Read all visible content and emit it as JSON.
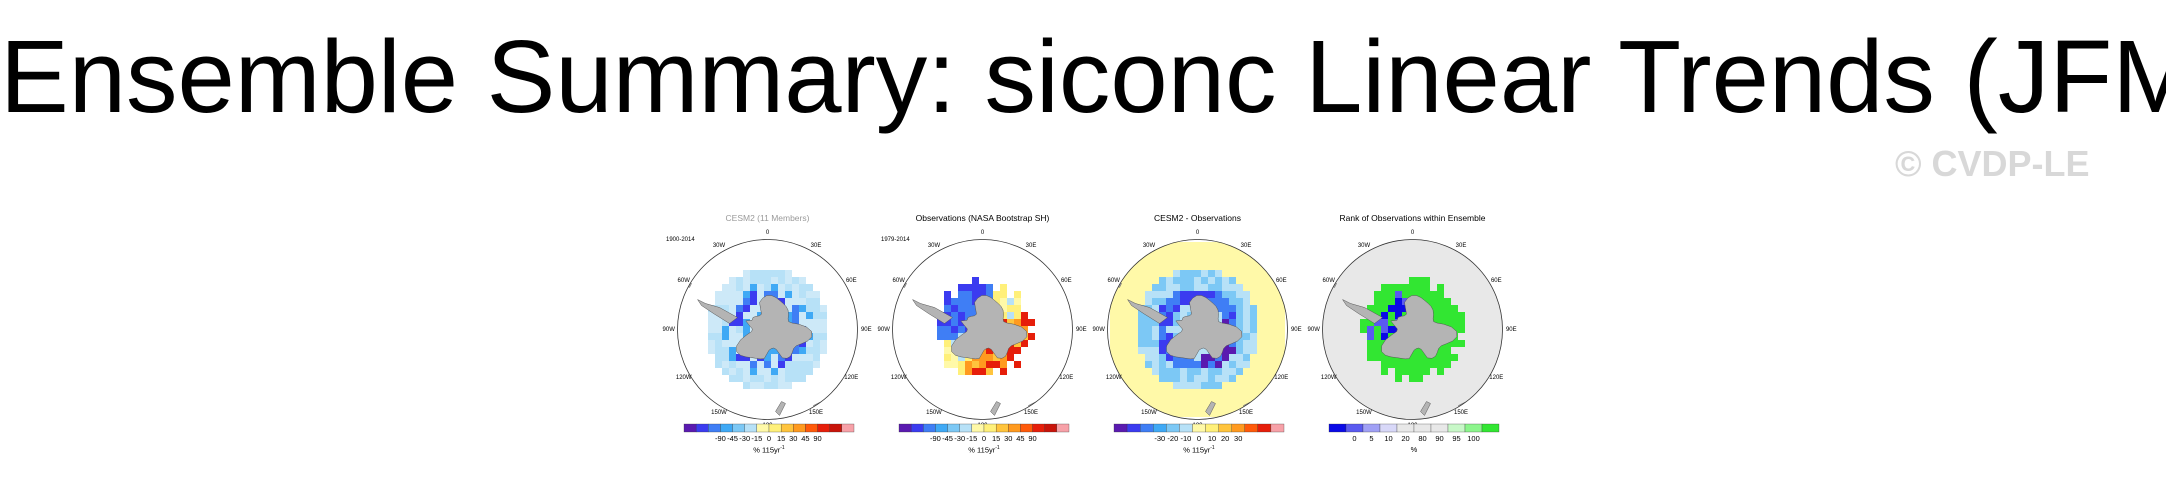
{
  "title": "Ensemble Summary: siconc Linear Trends (JFM)",
  "watermark": "© CVDP-LE",
  "longitude_labels": [
    "0",
    "30E",
    "60E",
    "90E",
    "120E",
    "150E",
    "180",
    "150W",
    "120W",
    "90W",
    "60W",
    "30W"
  ],
  "panels": [
    {
      "title": "CESM2 (11 Members)",
      "title_color": "#9a9a9a",
      "period": "1900-2014",
      "field": "cesm2",
      "colorbar": {
        "ticks": [
          "-90",
          "-45",
          "-30",
          "-15",
          "0",
          "15",
          "30",
          "45",
          "90"
        ],
        "unit": "% 115yr",
        "unit_sup": "-1",
        "colors": [
          "#5a1ab0",
          "#3b3bf0",
          "#3f7ef5",
          "#3fa9f5",
          "#7cc8f5",
          "#b7e1f7",
          "#fff9a8",
          "#fff07a",
          "#ffc43d",
          "#ff9a1f",
          "#ff5a0a",
          "#e61e0a",
          "#c8140a",
          "#f7a1a8"
        ]
      }
    },
    {
      "title": "Observations (NASA Bootstrap SH)",
      "title_color": "#000000",
      "period": "1979-2014",
      "field": "obs",
      "colorbar": {
        "ticks": [
          "-90",
          "-45",
          "-30",
          "-15",
          "0",
          "15",
          "30",
          "45",
          "90"
        ],
        "unit": "% 115yr",
        "unit_sup": "-1",
        "colors": [
          "#5a1ab0",
          "#3b3bf0",
          "#3f7ef5",
          "#3fa9f5",
          "#7cc8f5",
          "#b7e1f7",
          "#fff9a8",
          "#fff07a",
          "#ffc43d",
          "#ff9a1f",
          "#ff5a0a",
          "#e61e0a",
          "#c8140a",
          "#f7a1a8"
        ]
      }
    },
    {
      "title": "CESM2 - Observations",
      "title_color": "#000000",
      "period": "",
      "field": "diff",
      "colorbar": {
        "ticks": [
          "-30",
          "-20",
          "-10",
          "0",
          "10",
          "20",
          "30"
        ],
        "unit": "% 115yr",
        "unit_sup": "-1",
        "colors": [
          "#5a1ab0",
          "#3b3bf0",
          "#3f7ef5",
          "#3fa9f5",
          "#7cc8f5",
          "#b7e1f7",
          "#fff9a8",
          "#fff07a",
          "#ffc43d",
          "#ff9a1f",
          "#ff5a0a",
          "#e61e0a",
          "#f7a1a8"
        ]
      }
    },
    {
      "title": "Rank of Observations within Ensemble",
      "title_color": "#000000",
      "period": "",
      "field": "rank",
      "colorbar": {
        "ticks": [
          "0",
          "5",
          "10",
          "20",
          "80",
          "90",
          "95",
          "100"
        ],
        "unit": "%",
        "unit_sup": "",
        "colors": [
          "#0a0ae6",
          "#5a5af0",
          "#a0a0f5",
          "#d8d8f8",
          "#e8e8e8",
          "#e8e8e8",
          "#e8e8e8",
          "#c8f8c8",
          "#8cf58c",
          "#32e632"
        ]
      }
    }
  ]
}
